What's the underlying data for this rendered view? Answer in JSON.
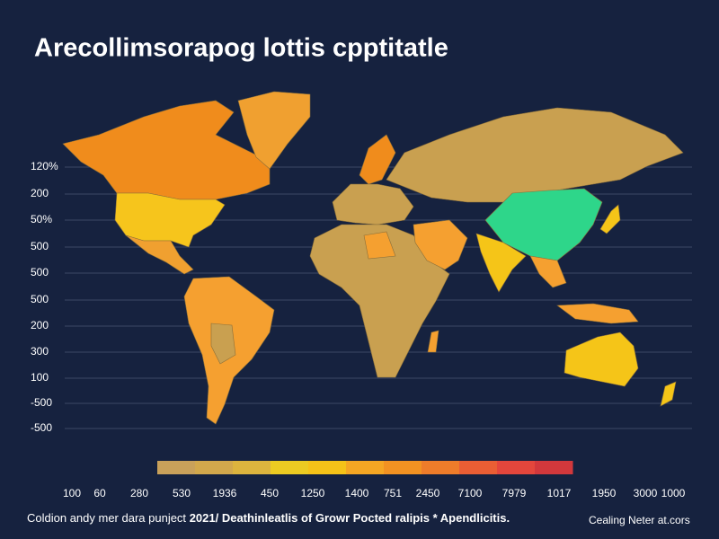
{
  "title": "Arecollimsorapog lottis cpptitatle",
  "left_labels": [
    "120%",
    "200",
    "50%",
    "500",
    "500",
    "500",
    "200",
    "300",
    "100",
    "-500",
    "-500"
  ],
  "bottom_labels": [
    "100",
    "60",
    "280",
    "530",
    "1936",
    "450",
    "1250",
    "1400",
    "751",
    "2450",
    "7100",
    "7979",
    "1017",
    "1950",
    "3000",
    "1000"
  ],
  "legend_colors": [
    "#c9a15a",
    "#d2a84c",
    "#dcb43e",
    "#eccb22",
    "#f5c218",
    "#f5a623",
    "#f29222",
    "#ee7c2a",
    "#ea5e34",
    "#e4463c",
    "#d2383c"
  ],
  "footer": {
    "left": "Coldion andy mer dara punject",
    "bold": "2021/ Deathinleatlis of Growr Pocted ralipis * Apendlicitis.",
    "right": "Cealing Neter at.cors"
  }
}
